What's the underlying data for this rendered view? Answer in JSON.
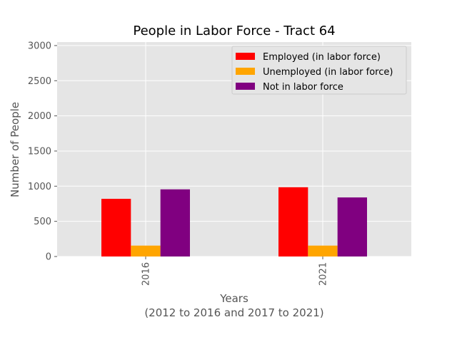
{
  "chart_data": {
    "type": "bar",
    "title": "People in Labor Force - Tract 64",
    "xlabel": "Years",
    "xlabel_sub": "(2012 to 2016 and 2017 to 2021)",
    "ylabel": "Number of People",
    "categories": [
      "2016",
      "2021"
    ],
    "ylim": [
      0,
      3050
    ],
    "yticks": [
      0,
      500,
      1000,
      1500,
      2000,
      2500,
      3000
    ],
    "grid": true,
    "legend_position": "top-right",
    "series": [
      {
        "name": "Employed (in labor force)",
        "color": "#ff0000",
        "values": [
          820,
          985
        ]
      },
      {
        "name": "Unemployed (in labor force)",
        "color": "#ffa500",
        "values": [
          155,
          155
        ]
      },
      {
        "name": "Not in labor force",
        "color": "#800080",
        "values": [
          955,
          840
        ]
      }
    ]
  }
}
